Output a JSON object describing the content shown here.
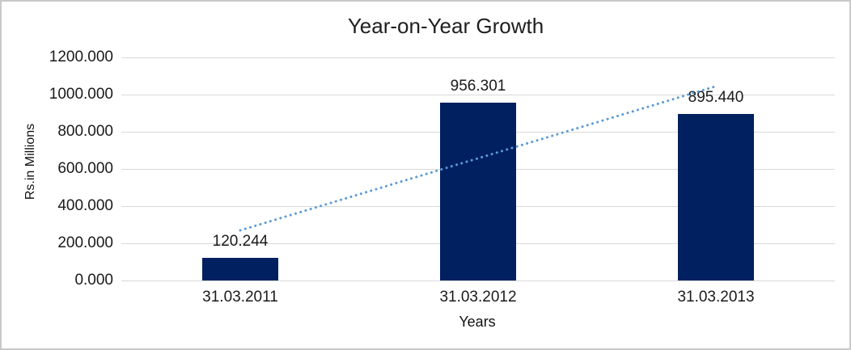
{
  "chart_data": {
    "type": "bar",
    "title": "Year-on-Year Growth",
    "ylabel": "Rs.in Millions",
    "xlabel": "Years",
    "categories": [
      "31.03.2011",
      "31.03.2012",
      "31.03.2013"
    ],
    "values": [
      120.244,
      956.301,
      895.44
    ],
    "data_labels": [
      "120.244",
      "956.301",
      "895.440"
    ],
    "ylim": [
      0,
      1200
    ],
    "ytick_step": 200,
    "ytick_labels": [
      "0.000",
      "200.000",
      "400.000",
      "600.000",
      "800.000",
      "1000.000",
      "1200.000"
    ],
    "grid": true,
    "legend": "none",
    "bar_color": "#002060",
    "gridline_color": "#D9D9D9",
    "trendline": {
      "type": "linear",
      "style": "dotted",
      "color": "#5B9BD5"
    }
  }
}
